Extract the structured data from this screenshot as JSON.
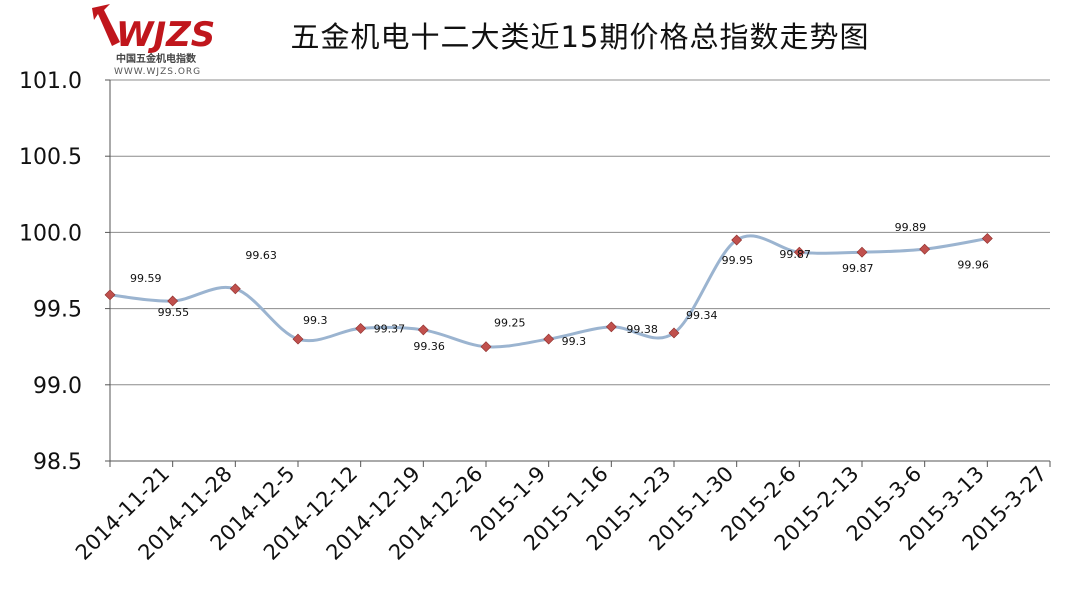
{
  "logo": {
    "wordmark": "WJZS",
    "name_cn": "中国五金机电指数",
    "url": "WWW.WJZS.ORG",
    "color": "#c0161c"
  },
  "chart_data": {
    "type": "line",
    "title": "五金机电十二大类近15期价格总指数走势图",
    "categories": [
      "2014-11-21",
      "2014-11-28",
      "2014-12-5",
      "2014-12-12",
      "2014-12-19",
      "2014-12-26",
      "2015-1-9",
      "2015-1-16",
      "2015-1-23",
      "2015-1-30",
      "2015-2-6",
      "2015-2-13",
      "2015-3-6",
      "2015-3-13",
      "2015-3-27"
    ],
    "series": [
      {
        "values": [
          99.59,
          99.55,
          99.63,
          99.3,
          99.37,
          99.36,
          99.25,
          99.3,
          99.38,
          99.34,
          99.95,
          99.87,
          99.87,
          99.89,
          99.96
        ],
        "data_labels": [
          "99.59",
          "99.55",
          "99.63",
          "99.3",
          "99.37",
          "99.36",
          "99.25",
          "99.3",
          "99.38",
          "99.34",
          "99.95",
          "99.87",
          "99.87",
          "99.89",
          "99.96"
        ],
        "line_color": "#9bb4d0",
        "marker_color": "#c0504d"
      }
    ],
    "ylim": [
      98.5,
      101.0
    ],
    "yticks": [
      "98.5",
      "99.0",
      "99.5",
      "100.0",
      "100.5",
      "101.0"
    ],
    "xlabel": "",
    "ylabel": "",
    "grid": true,
    "legend": "none"
  }
}
